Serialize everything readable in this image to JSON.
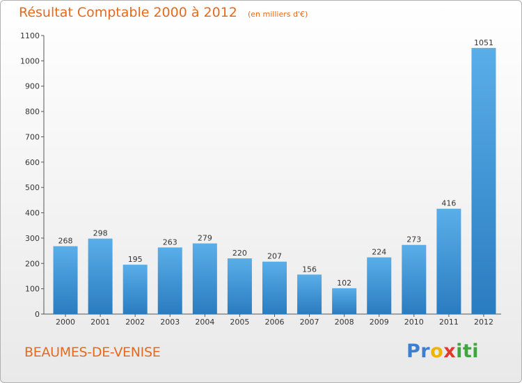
{
  "title": "Résultat Comptable 2000 à 2012",
  "subtitle": "(en milliers d'€)",
  "town": "BEAUMES-DE-VENISE",
  "brand": {
    "letters": [
      "P",
      "r",
      "o",
      "x",
      "i",
      "t",
      "i"
    ],
    "colors": [
      "#3a7fd1",
      "#3a7fd1",
      "#f0b400",
      "#e03a2a",
      "#3aa83a",
      "#3aa83a",
      "#3aa83a"
    ]
  },
  "colors": {
    "bar_top": "#5aaee8",
    "bar_bottom": "#2a7cc0",
    "title": "#e36a1e"
  },
  "chart_data": {
    "type": "bar",
    "categories": [
      "2000",
      "2001",
      "2002",
      "2003",
      "2004",
      "2005",
      "2006",
      "2007",
      "2008",
      "2009",
      "2010",
      "2011",
      "2012"
    ],
    "values": [
      268,
      298,
      195,
      263,
      279,
      220,
      207,
      156,
      102,
      224,
      273,
      416,
      1051
    ],
    "ylim": [
      0,
      1100
    ],
    "yticks": [
      0,
      100,
      200,
      300,
      400,
      500,
      600,
      700,
      800,
      900,
      1000,
      1100
    ],
    "grid": false
  }
}
